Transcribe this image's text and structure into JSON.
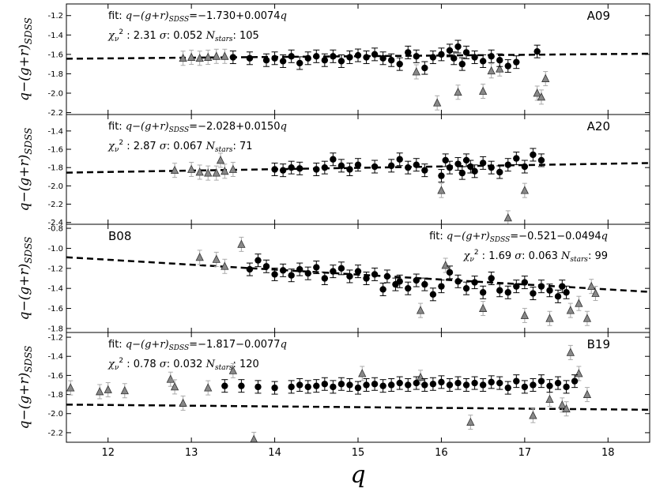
{
  "chart_data": {
    "type": "scatter",
    "xlabel": "q",
    "xlim": [
      11.5,
      18.5
    ],
    "xticks": [
      12,
      13,
      14,
      15,
      16,
      17,
      18
    ],
    "colors": {
      "fitted_star": "#000000",
      "rejected_star": "#888888",
      "fit_line": "#000000",
      "frame": "#000000"
    },
    "panels": [
      {
        "name": "A09",
        "ylabel": "q−(g+r)SDSS",
        "ylim": [
          -2.22,
          -1.08
        ],
        "yticks": [
          -1.2,
          -1.4,
          -1.6,
          -1.8,
          -2.0,
          -2.2
        ],
        "ytick_labels": [
          "-1.2",
          "-1.4",
          "-1.6",
          "-1.8",
          "-2.0",
          "-2.2"
        ],
        "fit_text": "fit: q−(g+r)SDSS=−1.730+0.0074q",
        "stats_text": "χν² : 2.31   σ: 0.052   Nstars: 105",
        "fit": {
          "intercept": -1.73,
          "slope": 0.0074
        },
        "text_side": "left",
        "fitted_points": [
          [
            13.5,
            -1.63
          ],
          [
            13.7,
            -1.64
          ],
          [
            13.9,
            -1.66
          ],
          [
            14.0,
            -1.64
          ],
          [
            14.1,
            -1.67
          ],
          [
            14.2,
            -1.62
          ],
          [
            14.3,
            -1.69
          ],
          [
            14.4,
            -1.64
          ],
          [
            14.5,
            -1.62
          ],
          [
            14.6,
            -1.66
          ],
          [
            14.7,
            -1.62
          ],
          [
            14.8,
            -1.67
          ],
          [
            14.9,
            -1.63
          ],
          [
            15.0,
            -1.61
          ],
          [
            15.1,
            -1.63
          ],
          [
            15.2,
            -1.6
          ],
          [
            15.3,
            -1.64
          ],
          [
            15.4,
            -1.66
          ],
          [
            15.5,
            -1.7
          ],
          [
            15.6,
            -1.58
          ],
          [
            15.7,
            -1.62
          ],
          [
            15.8,
            -1.74
          ],
          [
            15.9,
            -1.63
          ],
          [
            16.0,
            -1.6
          ],
          [
            16.1,
            -1.56
          ],
          [
            16.15,
            -1.64
          ],
          [
            16.2,
            -1.52
          ],
          [
            16.25,
            -1.7
          ],
          [
            16.3,
            -1.58
          ],
          [
            16.4,
            -1.63
          ],
          [
            16.5,
            -1.67
          ],
          [
            16.6,
            -1.62
          ],
          [
            16.7,
            -1.66
          ],
          [
            16.8,
            -1.72
          ],
          [
            16.9,
            -1.68
          ],
          [
            17.15,
            -1.57
          ]
        ],
        "rejected_points": [
          [
            12.9,
            -1.64
          ],
          [
            13.0,
            -1.63
          ],
          [
            13.1,
            -1.64
          ],
          [
            13.2,
            -1.63
          ],
          [
            13.3,
            -1.62
          ],
          [
            13.4,
            -1.62
          ],
          [
            15.7,
            -1.78
          ],
          [
            15.95,
            -2.1
          ],
          [
            16.2,
            -1.99
          ],
          [
            16.5,
            -1.98
          ],
          [
            16.6,
            -1.77
          ],
          [
            16.7,
            -1.75
          ],
          [
            17.15,
            -2.0
          ],
          [
            17.2,
            -2.04
          ],
          [
            17.25,
            -1.85
          ]
        ]
      },
      {
        "name": "A20",
        "ylabel": "q−(g+r)SDSS",
        "ylim": [
          -2.42,
          -1.22
        ],
        "yticks": [
          -1.4,
          -1.6,
          -1.8,
          -2.0,
          -2.2,
          -2.4
        ],
        "ytick_labels": [
          "-1.4",
          "-1.6",
          "-1.8",
          "-2.0",
          "-2.2",
          "-2.4"
        ],
        "fit_text": "fit: q−(g+r)SDSS=−2.028+0.0150q",
        "stats_text": "χν² : 2.87   σ: 0.067   Nstars: 71",
        "fit": {
          "intercept": -2.028,
          "slope": 0.015
        },
        "text_side": "left",
        "fitted_points": [
          [
            14.0,
            -1.82
          ],
          [
            14.1,
            -1.83
          ],
          [
            14.2,
            -1.8
          ],
          [
            14.3,
            -1.81
          ],
          [
            14.5,
            -1.82
          ],
          [
            14.6,
            -1.8
          ],
          [
            14.7,
            -1.71
          ],
          [
            14.8,
            -1.78
          ],
          [
            14.9,
            -1.82
          ],
          [
            15.0,
            -1.77
          ],
          [
            15.2,
            -1.79
          ],
          [
            15.4,
            -1.78
          ],
          [
            15.5,
            -1.71
          ],
          [
            15.6,
            -1.8
          ],
          [
            15.7,
            -1.77
          ],
          [
            15.8,
            -1.83
          ],
          [
            16.0,
            -1.89
          ],
          [
            16.05,
            -1.72
          ],
          [
            16.1,
            -1.8
          ],
          [
            16.2,
            -1.76
          ],
          [
            16.25,
            -1.86
          ],
          [
            16.3,
            -1.72
          ],
          [
            16.35,
            -1.79
          ],
          [
            16.4,
            -1.84
          ],
          [
            16.5,
            -1.75
          ],
          [
            16.6,
            -1.8
          ],
          [
            16.7,
            -1.85
          ],
          [
            16.8,
            -1.77
          ],
          [
            16.9,
            -1.7
          ],
          [
            17.0,
            -1.79
          ],
          [
            17.1,
            -1.66
          ],
          [
            17.2,
            -1.72
          ]
        ],
        "rejected_points": [
          [
            12.8,
            -1.83
          ],
          [
            13.0,
            -1.82
          ],
          [
            13.1,
            -1.85
          ],
          [
            13.2,
            -1.86
          ],
          [
            13.3,
            -1.86
          ],
          [
            13.4,
            -1.84
          ],
          [
            13.5,
            -1.82
          ],
          [
            13.35,
            -1.72
          ],
          [
            16.0,
            -2.05
          ],
          [
            17.0,
            -2.05
          ],
          [
            16.8,
            -2.35
          ]
        ]
      },
      {
        "name": "B08",
        "ylabel": "q−(g+r)SDSS",
        "ylim": [
          -1.84,
          -0.76
        ],
        "yticks": [
          -0.8,
          -1.0,
          -1.2,
          -1.4,
          -1.6,
          -1.8
        ],
        "ytick_labels": [
          "-0.8",
          "-1.0",
          "-1.2",
          "-1.4",
          "-1.6",
          "-1.8"
        ],
        "fit_text": "fit: q−(g+r)SDSS=−0.521−0.0494q",
        "stats_text": "χν² : 1.69   σ: 0.063   Nstars: 99",
        "fit": {
          "intercept": -0.521,
          "slope": -0.0494
        },
        "text_side": "right",
        "fitted_points": [
          [
            13.7,
            -1.21
          ],
          [
            13.8,
            -1.12
          ],
          [
            13.9,
            -1.18
          ],
          [
            14.0,
            -1.26
          ],
          [
            14.1,
            -1.22
          ],
          [
            14.2,
            -1.27
          ],
          [
            14.3,
            -1.21
          ],
          [
            14.4,
            -1.25
          ],
          [
            14.5,
            -1.19
          ],
          [
            14.6,
            -1.3
          ],
          [
            14.7,
            -1.23
          ],
          [
            14.8,
            -1.2
          ],
          [
            14.9,
            -1.28
          ],
          [
            15.0,
            -1.23
          ],
          [
            15.1,
            -1.3
          ],
          [
            15.2,
            -1.26
          ],
          [
            15.3,
            -1.41
          ],
          [
            15.35,
            -1.28
          ],
          [
            15.45,
            -1.36
          ],
          [
            15.5,
            -1.33
          ],
          [
            15.6,
            -1.4
          ],
          [
            15.7,
            -1.32
          ],
          [
            15.8,
            -1.36
          ],
          [
            15.9,
            -1.46
          ],
          [
            16.0,
            -1.38
          ],
          [
            16.1,
            -1.24
          ],
          [
            16.2,
            -1.33
          ],
          [
            16.3,
            -1.4
          ],
          [
            16.4,
            -1.34
          ],
          [
            16.5,
            -1.44
          ],
          [
            16.6,
            -1.3
          ],
          [
            16.7,
            -1.42
          ],
          [
            16.8,
            -1.44
          ],
          [
            16.9,
            -1.38
          ],
          [
            17.0,
            -1.34
          ],
          [
            17.1,
            -1.45
          ],
          [
            17.2,
            -1.38
          ],
          [
            17.3,
            -1.42
          ],
          [
            17.4,
            -1.48
          ],
          [
            17.45,
            -1.38
          ],
          [
            17.5,
            -1.44
          ]
        ],
        "rejected_points": [
          [
            13.1,
            -1.09
          ],
          [
            13.3,
            -1.11
          ],
          [
            13.4,
            -1.18
          ],
          [
            13.6,
            -0.96
          ],
          [
            15.75,
            -1.62
          ],
          [
            16.05,
            -1.17
          ],
          [
            16.5,
            -1.6
          ],
          [
            17.0,
            -1.67
          ],
          [
            17.3,
            -1.7
          ],
          [
            17.55,
            -1.62
          ],
          [
            17.65,
            -1.55
          ],
          [
            17.75,
            -1.7
          ],
          [
            17.8,
            -1.38
          ],
          [
            17.85,
            -1.45
          ]
        ]
      },
      {
        "name": "B19",
        "ylabel": "q−(g+r)SDSS",
        "ylim": [
          -2.3,
          -1.15
        ],
        "yticks": [
          -1.2,
          -1.4,
          -1.6,
          -1.8,
          -2.0,
          -2.2
        ],
        "ytick_labels": [
          "-1.2",
          "-1.4",
          "-1.6",
          "-1.8",
          "-2.0",
          "-2.2"
        ],
        "fit_text": "fit: q−(g+r)SDSS=−1.817−0.0077q",
        "stats_text": "χν² : 0.78   σ: 0.032   Nstars: 120",
        "fit": {
          "intercept": -1.817,
          "slope": -0.0077
        },
        "text_side": "left",
        "fitted_points": [
          [
            13.4,
            -1.71
          ],
          [
            13.6,
            -1.71
          ],
          [
            13.8,
            -1.72
          ],
          [
            14.0,
            -1.73
          ],
          [
            14.2,
            -1.72
          ],
          [
            14.3,
            -1.7
          ],
          [
            14.4,
            -1.72
          ],
          [
            14.5,
            -1.71
          ],
          [
            14.6,
            -1.69
          ],
          [
            14.7,
            -1.72
          ],
          [
            14.8,
            -1.69
          ],
          [
            14.9,
            -1.7
          ],
          [
            15.0,
            -1.73
          ],
          [
            15.1,
            -1.7
          ],
          [
            15.2,
            -1.69
          ],
          [
            15.3,
            -1.71
          ],
          [
            15.4,
            -1.7
          ],
          [
            15.5,
            -1.68
          ],
          [
            15.6,
            -1.7
          ],
          [
            15.7,
            -1.68
          ],
          [
            15.8,
            -1.7
          ],
          [
            15.9,
            -1.69
          ],
          [
            16.0,
            -1.67
          ],
          [
            16.1,
            -1.7
          ],
          [
            16.2,
            -1.68
          ],
          [
            16.3,
            -1.7
          ],
          [
            16.4,
            -1.68
          ],
          [
            16.5,
            -1.7
          ],
          [
            16.6,
            -1.67
          ],
          [
            16.7,
            -1.68
          ],
          [
            16.8,
            -1.73
          ],
          [
            16.9,
            -1.66
          ],
          [
            17.0,
            -1.72
          ],
          [
            17.1,
            -1.7
          ],
          [
            17.2,
            -1.66
          ],
          [
            17.3,
            -1.71
          ],
          [
            17.4,
            -1.68
          ],
          [
            17.5,
            -1.72
          ],
          [
            17.6,
            -1.66
          ]
        ],
        "rejected_points": [
          [
            11.55,
            -1.73
          ],
          [
            11.9,
            -1.77
          ],
          [
            12.0,
            -1.75
          ],
          [
            12.2,
            -1.76
          ],
          [
            12.75,
            -1.64
          ],
          [
            12.8,
            -1.72
          ],
          [
            12.9,
            -1.89
          ],
          [
            13.2,
            -1.73
          ],
          [
            13.5,
            -1.55
          ],
          [
            13.75,
            -2.27
          ],
          [
            15.05,
            -1.58
          ],
          [
            15.75,
            -1.62
          ],
          [
            16.35,
            -2.09
          ],
          [
            17.1,
            -2.02
          ],
          [
            17.3,
            -1.85
          ],
          [
            17.45,
            -1.91
          ],
          [
            17.5,
            -1.95
          ],
          [
            17.55,
            -1.36
          ],
          [
            17.65,
            -1.58
          ],
          [
            17.75,
            -1.8
          ]
        ]
      }
    ]
  }
}
